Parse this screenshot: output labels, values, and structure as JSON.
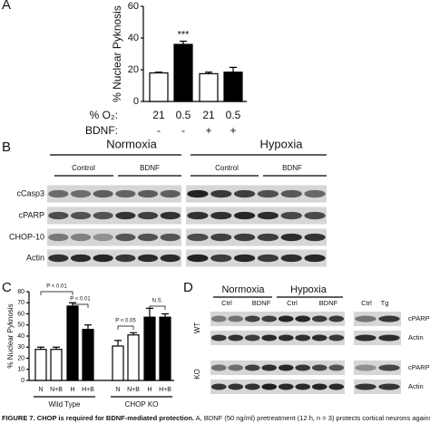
{
  "chart_data": [
    {
      "type": "bar",
      "panel_label": "A",
      "y_label": "% Nuclear Pyknosis",
      "ylim": [
        0,
        60
      ],
      "yticks": [
        0,
        20,
        40,
        60
      ],
      "values": [
        18,
        36,
        17.5,
        18.5
      ],
      "errors": [
        0.5,
        2,
        1,
        3
      ],
      "colors": [
        "#ffffff",
        "#000000",
        "#ffffff",
        "#000000"
      ],
      "annotation": "***",
      "rows": [
        {
          "label": "% O₂:",
          "values": [
            "21",
            "0.5",
            "21",
            "0.5"
          ]
        },
        {
          "label": "BDNF:",
          "values": [
            "-",
            "-",
            "+",
            "+"
          ]
        }
      ]
    },
    {
      "type": "bar",
      "panel_label": "C",
      "y_label": "% Nuclear Pyknosis",
      "ylim": [
        0,
        80
      ],
      "yticks": [
        0,
        10,
        20,
        30,
        40,
        50,
        60,
        70,
        80
      ],
      "categories": [
        "N",
        "N+B",
        "H",
        "H+B",
        "N",
        "N+B",
        "H",
        "H+B"
      ],
      "groups": [
        "Wild Type",
        "CHOP KO"
      ],
      "values": [
        28,
        28,
        67,
        46,
        31,
        41,
        57,
        57
      ],
      "errors": [
        2,
        2,
        3,
        4,
        5,
        2,
        8,
        3
      ],
      "colors": [
        "#ffffff",
        "#ffffff",
        "#000000",
        "#000000",
        "#ffffff",
        "#ffffff",
        "#000000",
        "#000000"
      ],
      "comparisons": [
        "P < 0.01",
        "P < 0.01",
        "P < 0.05",
        "N.S."
      ]
    }
  ],
  "blot_b": {
    "panel_label": "B",
    "conditions": [
      "Normoxia",
      "Hypoxia"
    ],
    "treatments": [
      "Control",
      "BDNF",
      "Control",
      "BDNF"
    ],
    "rows": [
      "cCasp3",
      "cPARP",
      "CHOP-10",
      "Actin"
    ]
  },
  "blot_d": {
    "panel_label": "D",
    "conditions": [
      "Normoxia",
      "Hypoxia"
    ],
    "treatments": [
      "Ctrl",
      "BDNF",
      "Ctrl",
      "BDNF",
      "Ctrl",
      "Tg"
    ],
    "genotypes": [
      "WT",
      "KO"
    ],
    "rows": [
      "cPARP",
      "Actin",
      "cPARP",
      "Actin"
    ]
  },
  "caption": {
    "label": "FIGURE 7.",
    "title": "CHOP is required for BDNF-mediated protection.",
    "text": "A, BDNF (50 ng/ml) pretreatment (12 h, n = 3) protects cortical neurons against hypoxic injury"
  }
}
